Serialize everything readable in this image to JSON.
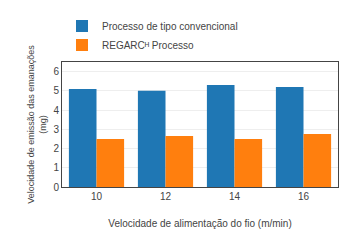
{
  "chart_data": {
    "type": "bar",
    "categories": [
      "10",
      "12",
      "14",
      "16"
    ],
    "series": [
      {
        "name": "Processo de tipo convencional",
        "values": [
          5.1,
          5.0,
          5.3,
          5.2
        ]
      },
      {
        "name": "REGARCᴴ Processo",
        "values": [
          2.5,
          2.65,
          2.5,
          2.75
        ]
      }
    ],
    "xlabel": "Velocidade de alimentação do fio (m/min)",
    "ylabel": "Velocidade de emissão das emanações\n(mg)",
    "ylim": [
      0,
      6.5
    ],
    "yticks": [
      0,
      1,
      2,
      3,
      4,
      5,
      6
    ],
    "grid": true,
    "legend": "top"
  }
}
